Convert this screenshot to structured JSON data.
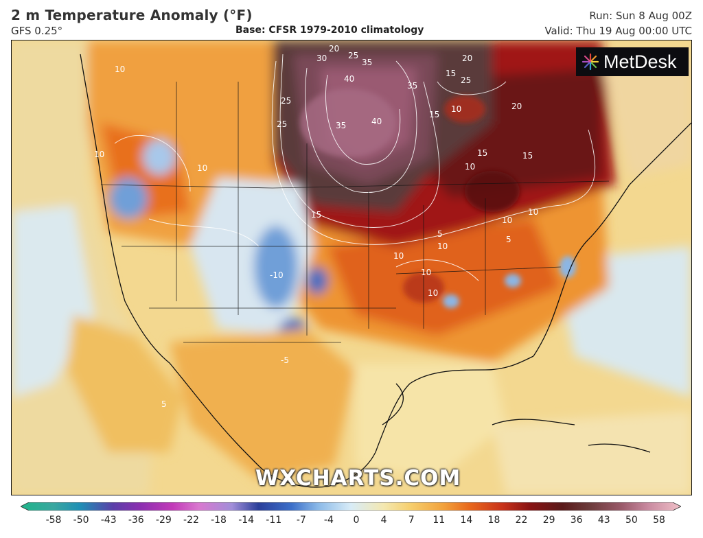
{
  "header": {
    "title": "2 m Temperature Anomaly (°F)",
    "model": "GFS 0.25°",
    "base": "Base: CFSR 1979-2010 climatology",
    "run": "Run: Sun 8 Aug 00Z",
    "valid": "Valid: Thu 19 Aug 00:00 UTC"
  },
  "branding": {
    "logo_text": "MetDesk",
    "logo_icon": "starburst-icon",
    "watermark": "WXCHARTS.COM"
  },
  "colorbar": {
    "ticks": [
      "-58",
      "-50",
      "-43",
      "-36",
      "-29",
      "-22",
      "-18",
      "-14",
      "-11",
      "-7",
      "-4",
      "0",
      "4",
      "7",
      "11",
      "14",
      "18",
      "22",
      "29",
      "36",
      "43",
      "50",
      "58"
    ],
    "colors": [
      "#1fb489",
      "#3aa7a0",
      "#1f8fb5",
      "#5a3fa8",
      "#8a2fb0",
      "#c23ab8",
      "#d978cf",
      "#a18ed9",
      "#2b3f9a",
      "#3c6fc9",
      "#8ab9e8",
      "#d8ecf7",
      "#f4e8b0",
      "#f6cf6e",
      "#f2a23c",
      "#e8681c",
      "#c8321a",
      "#8a1414",
      "#5a1a1a",
      "#6b3a3a",
      "#9a5a6a",
      "#c98aa0",
      "#f0c0c8"
    ]
  },
  "map_labels": [
    {
      "text": "20"
    },
    {
      "text": "25"
    },
    {
      "text": "30"
    },
    {
      "text": "35"
    },
    {
      "text": "40"
    },
    {
      "text": "35"
    },
    {
      "text": "40"
    },
    {
      "text": "25"
    },
    {
      "text": "25"
    },
    {
      "text": "35"
    },
    {
      "text": "20"
    },
    {
      "text": "25"
    },
    {
      "text": "20"
    },
    {
      "text": "15"
    },
    {
      "text": "15"
    },
    {
      "text": "10"
    },
    {
      "text": "15"
    },
    {
      "text": "10"
    },
    {
      "text": "15"
    },
    {
      "text": "15"
    },
    {
      "text": "10"
    },
    {
      "text": "10"
    },
    {
      "text": "15"
    },
    {
      "text": "5"
    },
    {
      "text": "10"
    },
    {
      "text": "10"
    },
    {
      "text": "5"
    },
    {
      "text": "10"
    },
    {
      "text": "10"
    },
    {
      "text": "10"
    },
    {
      "text": "10"
    },
    {
      "text": "-10"
    },
    {
      "text": "-5"
    },
    {
      "text": "5"
    },
    {
      "text": "10"
    }
  ]
}
